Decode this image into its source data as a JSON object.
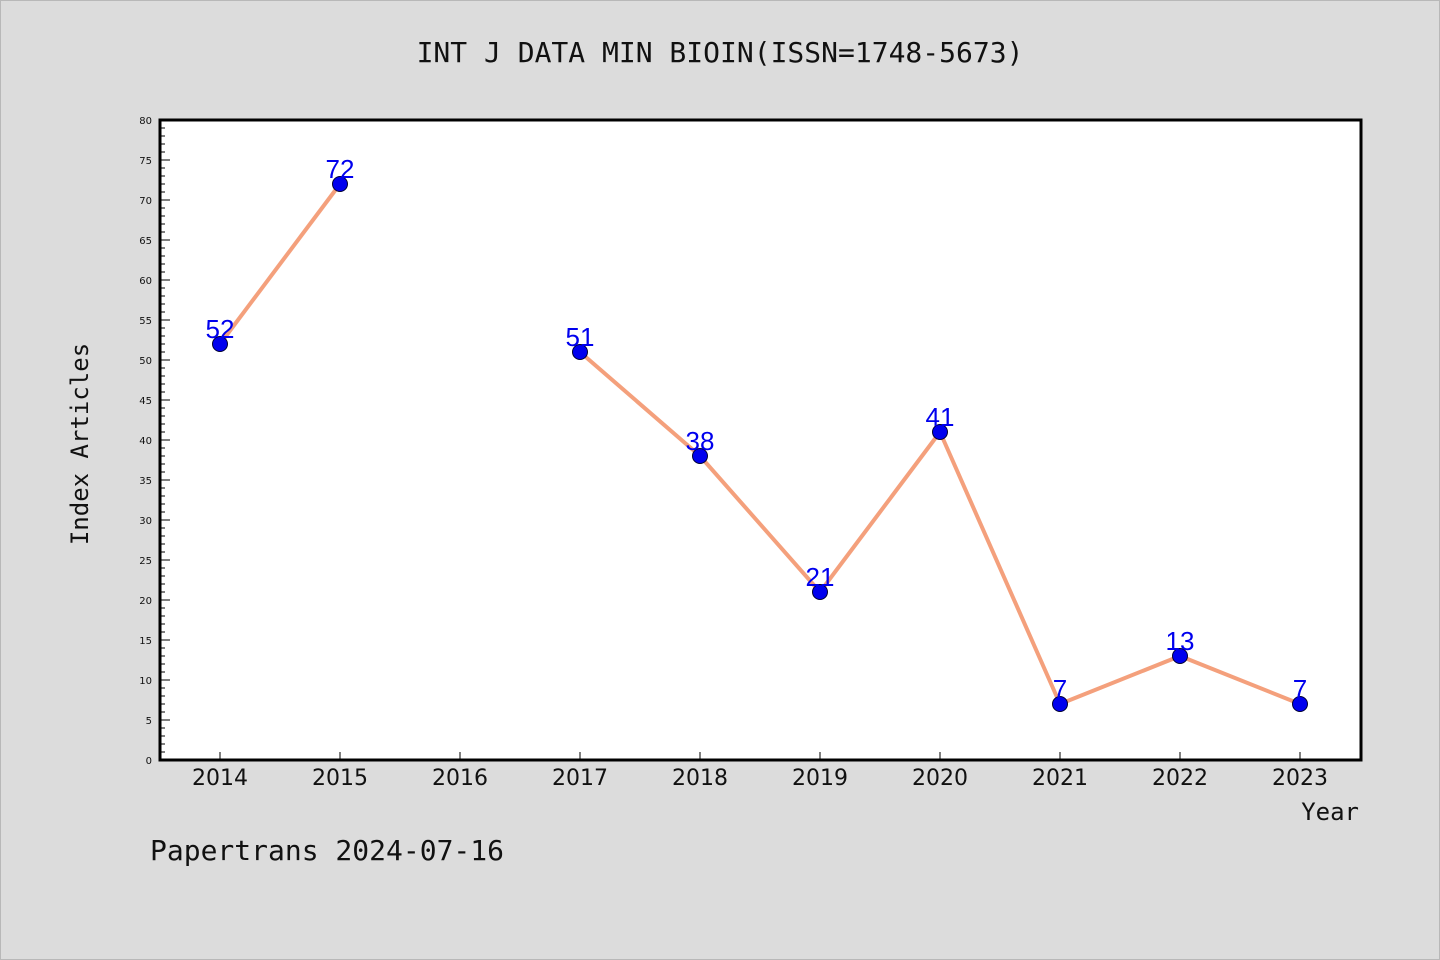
{
  "chart_data": {
    "type": "line",
    "title": "INT J DATA MIN BIOIN(ISSN=1748-5673)",
    "xlabel": "Year",
    "ylabel": "Index Articles",
    "categories": [
      "2014",
      "2015",
      "2016",
      "2017",
      "2018",
      "2019",
      "2020",
      "2021",
      "2022",
      "2023"
    ],
    "series": [
      {
        "values": [
          52,
          72,
          null,
          51,
          38,
          21,
          41,
          7,
          13,
          7
        ]
      }
    ],
    "ylim": [
      0,
      80
    ],
    "yticks": [
      0,
      5,
      10,
      15,
      20,
      25,
      30,
      35,
      40,
      45,
      50,
      55,
      60,
      65,
      70,
      75,
      80
    ],
    "grid": false,
    "legend": "none",
    "colors": {
      "line": "#f4a07c",
      "marker": "#0000ee",
      "label": "#0000ee",
      "background": "#dcdcdc",
      "plot": "#ffffff"
    }
  },
  "footer": {
    "text": "Papertrans 2024-07-16"
  }
}
